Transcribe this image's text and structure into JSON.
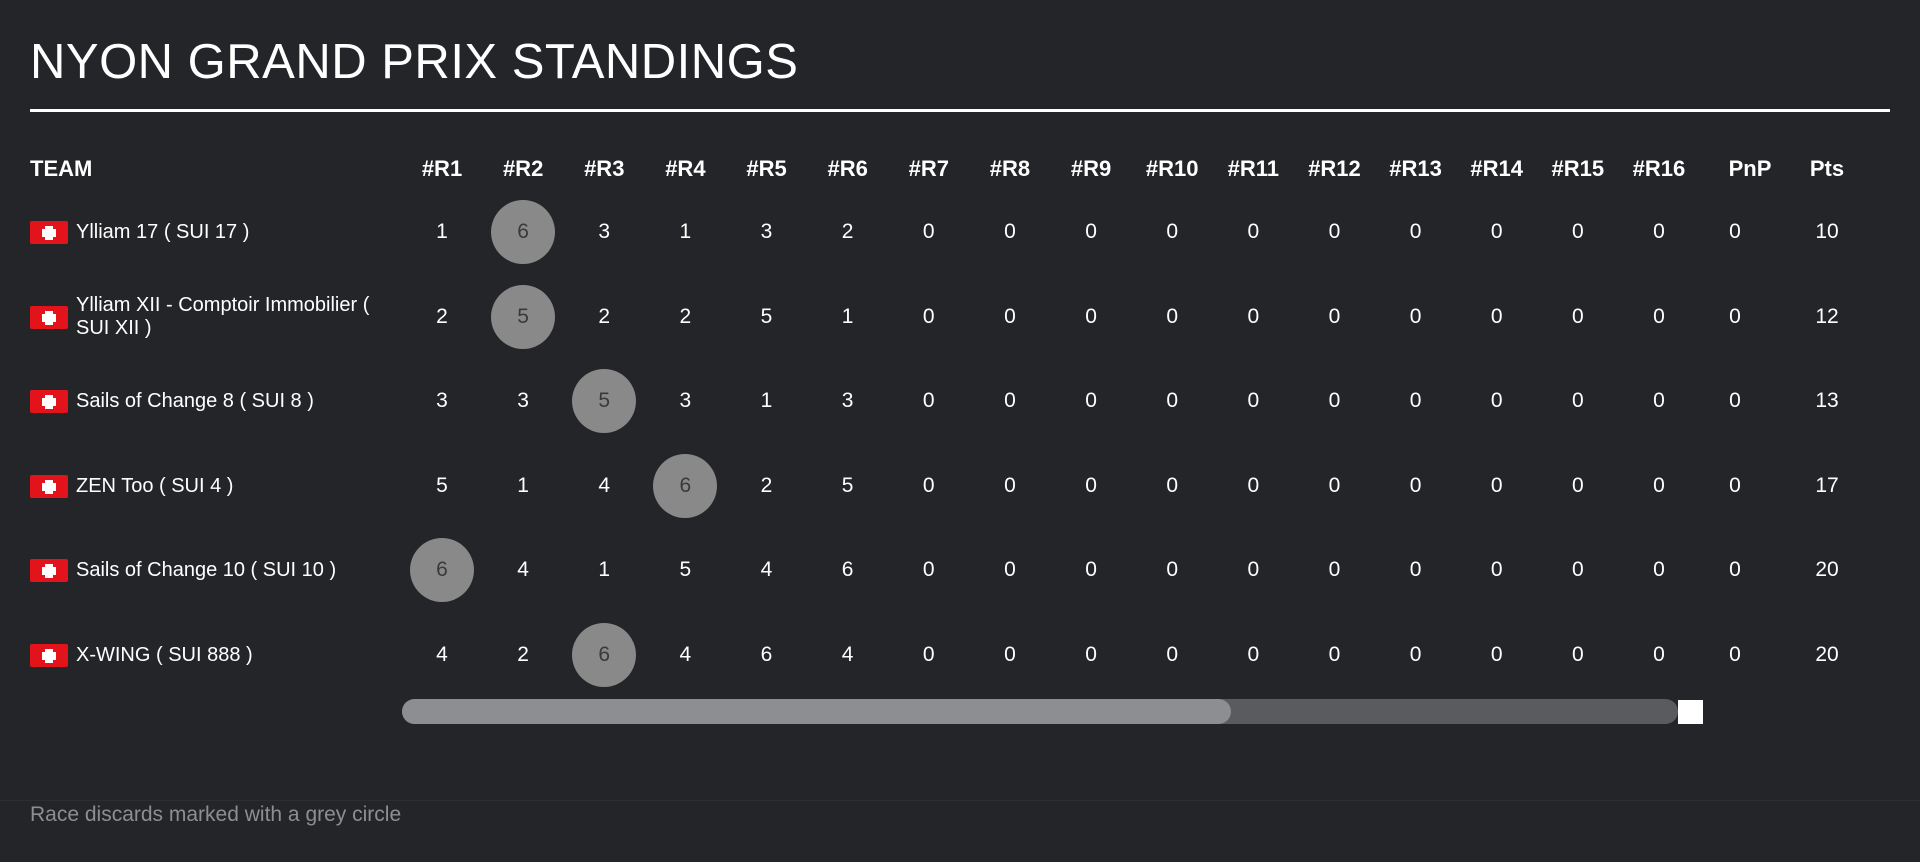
{
  "title": "NYON GRAND PRIX STANDINGS",
  "columns": {
    "team": "TEAM",
    "races": [
      "#R1",
      "#R2",
      "#R3",
      "#R4",
      "#R5",
      "#R6",
      "#R7",
      "#R8",
      "#R9",
      "#R10",
      "#R11",
      "#R12",
      "#R13",
      "#R14",
      "#R15",
      "#R16"
    ],
    "pnp": "PnP",
    "pts": "Pts"
  },
  "teams": [
    {
      "name": "Ylliam 17 ( SUI 17 )",
      "flag": "switzerland-flag-icon",
      "races": [
        1,
        6,
        3,
        1,
        3,
        2,
        0,
        0,
        0,
        0,
        0,
        0,
        0,
        0,
        0,
        0
      ],
      "discard": 1,
      "pnp": 0,
      "pts": 10
    },
    {
      "name": "Ylliam XII - Comptoir Immobilier ( SUI XII )",
      "flag": "switzerland-flag-icon",
      "races": [
        2,
        5,
        2,
        2,
        5,
        1,
        0,
        0,
        0,
        0,
        0,
        0,
        0,
        0,
        0,
        0
      ],
      "discard": 1,
      "pnp": 0,
      "pts": 12
    },
    {
      "name": "Sails of Change 8 ( SUI 8 )",
      "flag": "switzerland-flag-icon",
      "races": [
        3,
        3,
        5,
        3,
        1,
        3,
        0,
        0,
        0,
        0,
        0,
        0,
        0,
        0,
        0,
        0
      ],
      "discard": 2,
      "pnp": 0,
      "pts": 13
    },
    {
      "name": "ZEN Too ( SUI 4 )",
      "flag": "switzerland-flag-icon",
      "races": [
        5,
        1,
        4,
        6,
        2,
        5,
        0,
        0,
        0,
        0,
        0,
        0,
        0,
        0,
        0,
        0
      ],
      "discard": 3,
      "pnp": 0,
      "pts": 17
    },
    {
      "name": "Sails of Change 10 ( SUI 10 )",
      "flag": "switzerland-flag-icon",
      "races": [
        6,
        4,
        1,
        5,
        4,
        6,
        0,
        0,
        0,
        0,
        0,
        0,
        0,
        0,
        0,
        0
      ],
      "discard": 0,
      "pnp": 0,
      "pts": 20
    },
    {
      "name": "X-WING ( SUI 888 )",
      "flag": "switzerland-flag-icon",
      "races": [
        4,
        2,
        6,
        4,
        6,
        4,
        0,
        0,
        0,
        0,
        0,
        0,
        0,
        0,
        0,
        0
      ],
      "discard": 2,
      "pnp": 0,
      "pts": 20
    }
  ],
  "scrollbar": {
    "position_fraction": 0.65
  },
  "footnote": "Race discards marked with a grey circle",
  "colors": {
    "background": "#242529",
    "discard_circle": "#898989",
    "flag_red": "#e3131b",
    "text": "#ffffff",
    "muted": "#8d8e91"
  }
}
